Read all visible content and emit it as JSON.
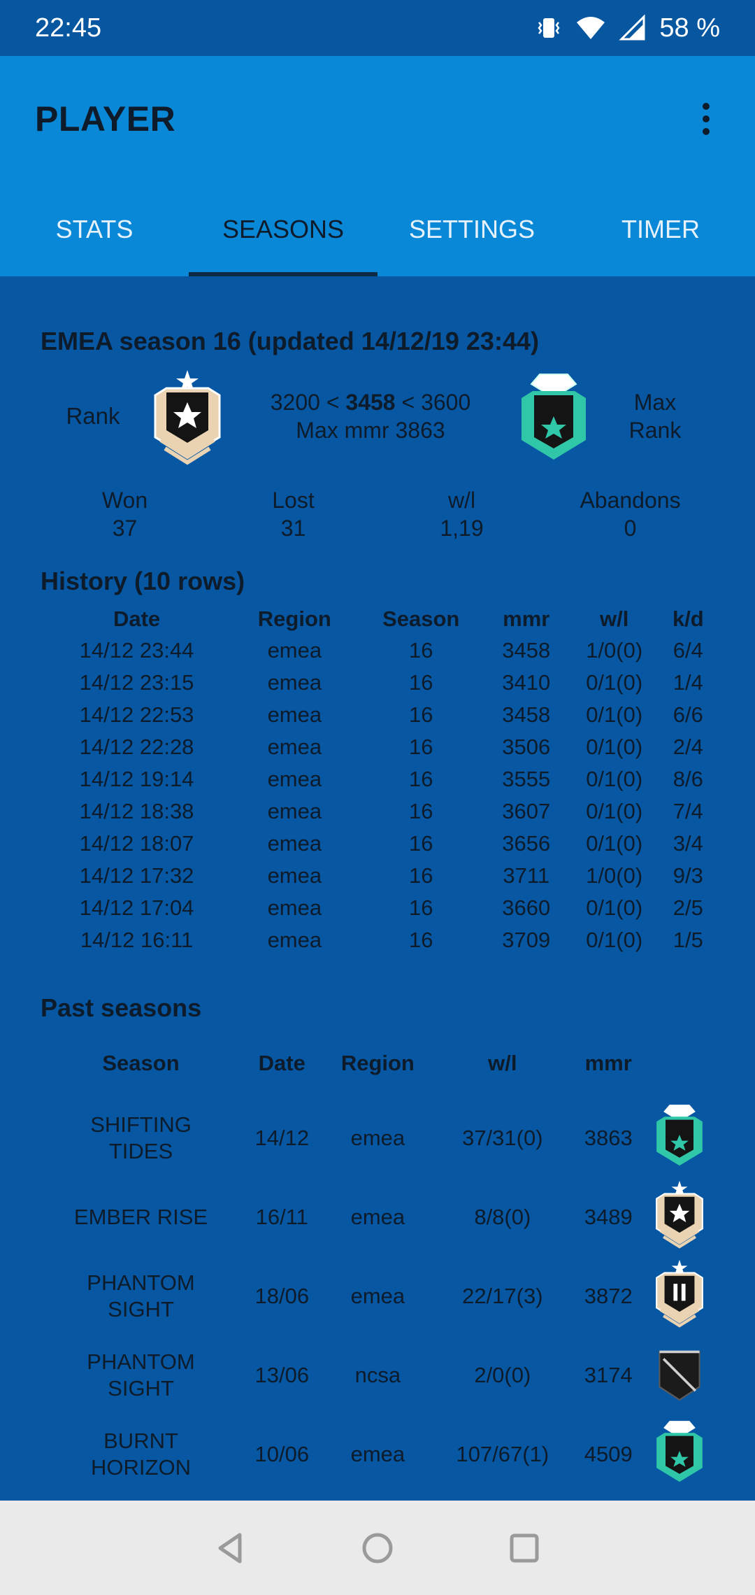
{
  "status": {
    "time": "22:45",
    "battery": "58 %"
  },
  "appbar": {
    "title": "PLAYER"
  },
  "tabs": [
    {
      "label": "STATS",
      "active": false
    },
    {
      "label": "SEASONS",
      "active": true
    },
    {
      "label": "SETTINGS",
      "active": false
    },
    {
      "label": "TIMER",
      "active": false
    }
  ],
  "season": {
    "title": "EMEA season 16 (updated 14/12/19 23:44)",
    "rank_label": "Rank",
    "mmr_low": "3200 <",
    "mmr_current": "3458",
    "mmr_high": "< 3600",
    "max_mmr": "Max mmr 3863",
    "max_rank_label_1": "Max",
    "max_rank_label_2": "Rank",
    "stats": [
      {
        "label": "Won",
        "value": "37"
      },
      {
        "label": "Lost",
        "value": "31"
      },
      {
        "label": "w/l",
        "value": "1,19"
      },
      {
        "label": "Abandons",
        "value": "0"
      }
    ]
  },
  "history": {
    "title": "History (10 rows)",
    "headers": [
      "Date",
      "Region",
      "Season",
      "mmr",
      "w/l",
      "k/d"
    ],
    "rows": [
      [
        "14/12 23:44",
        "emea",
        "16",
        "3458",
        "1/0(0)",
        "6/4"
      ],
      [
        "14/12 23:15",
        "emea",
        "16",
        "3410",
        "0/1(0)",
        "1/4"
      ],
      [
        "14/12 22:53",
        "emea",
        "16",
        "3458",
        "0/1(0)",
        "6/6"
      ],
      [
        "14/12 22:28",
        "emea",
        "16",
        "3506",
        "0/1(0)",
        "2/4"
      ],
      [
        "14/12 19:14",
        "emea",
        "16",
        "3555",
        "0/1(0)",
        "8/6"
      ],
      [
        "14/12 18:38",
        "emea",
        "16",
        "3607",
        "0/1(0)",
        "7/4"
      ],
      [
        "14/12 18:07",
        "emea",
        "16",
        "3656",
        "0/1(0)",
        "3/4"
      ],
      [
        "14/12 17:32",
        "emea",
        "16",
        "3711",
        "1/0(0)",
        "9/3"
      ],
      [
        "14/12 17:04",
        "emea",
        "16",
        "3660",
        "0/1(0)",
        "2/5"
      ],
      [
        "14/12 16:11",
        "emea",
        "16",
        "3709",
        "0/1(0)",
        "1/5"
      ]
    ]
  },
  "past": {
    "title": "Past seasons",
    "headers": [
      "Season",
      "Date",
      "Region",
      "w/l",
      "mmr",
      ""
    ],
    "rows": [
      {
        "season_1": "SHIFTING",
        "season_2": "TIDES",
        "date": "14/12",
        "region": "emea",
        "wl": "37/31(0)",
        "mmr": "3863",
        "icon": "diamond-rank-icon"
      },
      {
        "season_1": "EMBER RISE",
        "season_2": "",
        "date": "16/11",
        "region": "emea",
        "wl": "8/8(0)",
        "mmr": "3489",
        "icon": "platinum-rank-icon"
      },
      {
        "season_1": "PHANTOM",
        "season_2": "SIGHT",
        "date": "18/06",
        "region": "emea",
        "wl": "22/17(3)",
        "mmr": "3872",
        "icon": "platinum-ii-rank-icon"
      },
      {
        "season_1": "PHANTOM",
        "season_2": "SIGHT",
        "date": "13/06",
        "region": "ncsa",
        "wl": "2/0(0)",
        "mmr": "3174",
        "icon": "unranked-icon"
      },
      {
        "season_1": "BURNT",
        "season_2": "HORIZON",
        "date": "10/06",
        "region": "emea",
        "wl": "107/67(1)",
        "mmr": "4509",
        "icon": "diamond-rank-icon"
      }
    ]
  },
  "colors": {
    "background": "#0757A3",
    "appbar": "#0A88D8",
    "status": "#0656A0",
    "navbar": "#EAEAEA"
  }
}
